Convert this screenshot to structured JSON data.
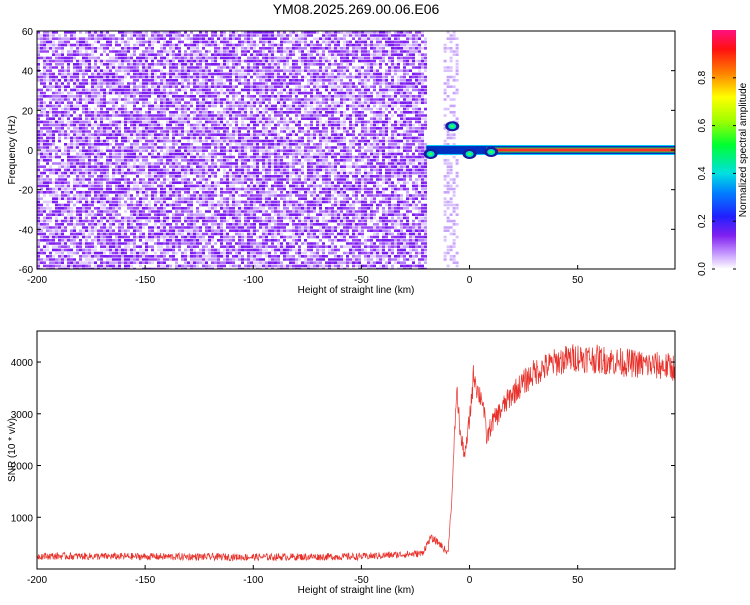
{
  "title": "YM08.2025.269.00.06.E06",
  "colors": {
    "snr_line": "#e8312a",
    "background_noise": "#8020f0",
    "signal_line": "#2060ff",
    "frame": "#000000"
  },
  "chart_data": [
    {
      "type": "heatmap",
      "name": "spectrogram",
      "xlabel": "Height of straight line (km)",
      "ylabel": "Frequency (Hz)",
      "xlim": [
        -200,
        95
      ],
      "ylim": [
        -60,
        60
      ],
      "x_ticks": [
        -200,
        -150,
        -100,
        -50,
        0,
        50
      ],
      "x_tick_labels": [
        "-200",
        "-150",
        "-100",
        "-50",
        "0",
        "50"
      ],
      "y_ticks": [
        -60,
        -40,
        -20,
        0,
        20,
        40,
        60
      ],
      "y_tick_labels": [
        "-60",
        "-40",
        "-20",
        "0",
        "20",
        "40",
        "60"
      ],
      "noise_region": {
        "x_from": -200,
        "x_to": -20
      },
      "signal_band": {
        "x_from": -20,
        "x_to": 95,
        "freq_center": 0,
        "freq_halfwidth": 2
      },
      "features": [
        {
          "x": -18,
          "freq": -2
        },
        {
          "x": -8,
          "freq": 12
        },
        {
          "x": 0,
          "freq": -2
        },
        {
          "x": 10,
          "freq": -1
        }
      ],
      "colorbar": {
        "label": "Normalized spectral amplitude",
        "range": [
          0,
          1
        ],
        "ticks": [
          0.0,
          0.2,
          0.4,
          0.6,
          0.8
        ],
        "tick_labels": [
          "0.0",
          "0.2",
          "0.4",
          "0.6",
          "0.8"
        ]
      }
    },
    {
      "type": "line",
      "name": "snr",
      "xlabel": "Height of straight line (km)",
      "ylabel": "SNR (10 * v/v)",
      "xlim": [
        -200,
        95
      ],
      "ylim": [
        0,
        4600
      ],
      "x_ticks": [
        -200,
        -150,
        -100,
        -50,
        0,
        50
      ],
      "x_tick_labels": [
        "-200",
        "-150",
        "-100",
        "-50",
        "0",
        "50"
      ],
      "y_ticks": [
        1000,
        2000,
        3000,
        4000
      ],
      "y_tick_labels": [
        "1000",
        "2000",
        "3000",
        "4000"
      ],
      "series": [
        {
          "x": [
            -200,
            -150,
            -100,
            -50,
            -22,
            -18,
            -14,
            -10,
            -8,
            -6,
            -4,
            -2,
            0,
            2,
            4,
            6,
            8,
            10,
            15,
            20,
            25,
            30,
            40,
            50,
            60,
            70,
            80,
            95
          ],
          "y": [
            250,
            240,
            230,
            240,
            300,
            600,
            500,
            300,
            1500,
            3500,
            2500,
            2200,
            2900,
            3800,
            3400,
            3300,
            2500,
            2800,
            3100,
            3400,
            3600,
            3800,
            4000,
            4100,
            4050,
            4000,
            3950,
            3900
          ]
        }
      ]
    }
  ]
}
